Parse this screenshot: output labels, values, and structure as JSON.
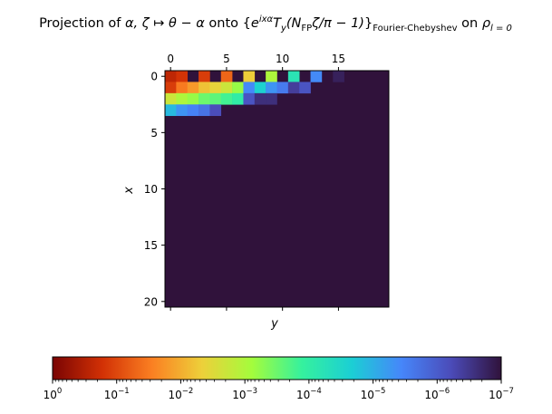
{
  "chart_data": {
    "type": "heatmap",
    "title": {
      "prefix": "Projection of ",
      "map": "α, ζ ↦ θ − α",
      "onto": " onto ",
      "basis_open": "{",
      "basis_exp": "e",
      "basis_sup": "ixα",
      "basis_T": "T",
      "basis_T_sub": "y",
      "basis_arg": "(N",
      "basis_arg_sub": "FP",
      "basis_arg_rest": "ζ/π − 1)",
      "basis_close": "}",
      "basis_sub": "Fourier-Chebyshev",
      "on": " on ",
      "rho": "ρ",
      "rho_sub": "l = 0"
    },
    "xlabel": "y",
    "ylabel": "x",
    "top_ticks": [
      "0",
      "5",
      "10",
      "15"
    ],
    "top_tick_values": [
      0,
      5,
      10,
      15
    ],
    "bottom_tick_values": [
      0,
      5,
      10,
      15
    ],
    "left_ticks": [
      "0",
      "5",
      "10",
      "15",
      "20"
    ],
    "left_tick_values": [
      0,
      5,
      10,
      15,
      20
    ],
    "n_cols": 20,
    "n_rows": 21,
    "background_log10": -7,
    "log10_values": [
      [
        -0.6,
        -0.8,
        -7,
        -0.9,
        -7,
        -1.3,
        -7,
        -2.3,
        -7,
        -3.0,
        -7,
        -4.2,
        -7,
        -5.4,
        -7,
        -6.8,
        -7,
        -7,
        -7,
        -7
      ],
      [
        -0.9,
        -1.5,
        -1.8,
        -2.2,
        -2.4,
        -2.7,
        -3.2,
        -5.4,
        -4.6,
        -5.3,
        -5.6,
        -6.4,
        -6.1,
        -7,
        -7,
        -7,
        -7,
        -7,
        -7,
        -7
      ],
      [
        -2.7,
        -3.0,
        -3.2,
        -3.5,
        -3.6,
        -3.8,
        -4.0,
        -6.1,
        -6.6,
        -6.6,
        -7,
        -7,
        -7,
        -7,
        -7,
        -7,
        -7,
        -7,
        -7,
        -7
      ],
      [
        -4.9,
        -5.3,
        -5.5,
        -5.7,
        -6.2,
        -7,
        -7,
        -7,
        -7,
        -7,
        -7,
        -7,
        -7,
        -7,
        -7,
        -7,
        -7,
        -7,
        -7,
        -7
      ]
    ],
    "colorbar": {
      "scale": "log",
      "range_log10": [
        0,
        -7
      ],
      "ticks": [
        {
          "base": "10",
          "exp": "0"
        },
        {
          "base": "10",
          "exp": "−1"
        },
        {
          "base": "10",
          "exp": "−2"
        },
        {
          "base": "10",
          "exp": "−3"
        },
        {
          "base": "10",
          "exp": "−4"
        },
        {
          "base": "10",
          "exp": "−5"
        },
        {
          "base": "10",
          "exp": "−6"
        },
        {
          "base": "10",
          "exp": "−7"
        }
      ],
      "colormap": "turbo (reversed)",
      "stops": [
        "#7a0403",
        "#d23105",
        "#fb8022",
        "#edd03a",
        "#a4fc3c",
        "#35f19e",
        "#1bcfd4",
        "#4686fa",
        "#4b4bb8",
        "#30123b"
      ]
    }
  }
}
